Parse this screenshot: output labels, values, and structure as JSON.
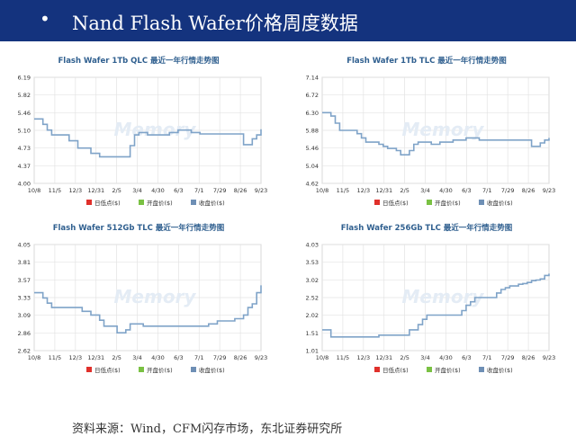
{
  "header": {
    "bullet": "•",
    "title": "Nand Flash Wafer价格周度数据"
  },
  "source": "资料来源：Wind，CFM闪存市场，东北证券研究所",
  "legend": {
    "low": "日低点($)",
    "open": "开盘价($)",
    "close": "收盘价($)"
  },
  "colors": {
    "header_bg": "#14337e",
    "line": "#7fa3c8",
    "title": "#2f5f8f",
    "low": "#e0302b",
    "open": "#7ac143",
    "close": "#6e8fb5"
  },
  "chart_data": [
    {
      "type": "line",
      "title": "Flash Wafer 1Tb QLC 最近一年行情走势图",
      "x_ticks": [
        "10/8",
        "11/5",
        "12/3",
        "12/31",
        "2/5",
        "3/4",
        "4/30",
        "6/3",
        "7/1",
        "7/29",
        "8/26",
        "9/23"
      ],
      "y_ticks": [
        "6.19",
        "5.82",
        "5.46",
        "5.10",
        "4.73",
        "4.37",
        "4.00"
      ],
      "ylim": [
        4.0,
        6.19
      ],
      "series": [
        {
          "values": [
            5.33,
            5.33,
            5.22,
            5.1,
            5.0,
            5.0,
            5.0,
            5.0,
            4.88,
            4.88,
            4.73,
            4.73,
            4.73,
            4.62,
            4.62,
            4.55,
            4.55,
            4.55,
            4.55,
            4.55,
            4.55,
            4.55,
            4.78,
            5.0,
            5.05,
            5.05,
            5.0,
            5.0,
            5.0,
            5.0,
            5.0,
            5.05,
            5.05,
            5.1,
            5.1,
            5.1,
            5.05,
            5.05,
            5.02,
            5.02,
            5.02,
            5.02,
            5.02,
            5.02,
            5.02,
            5.02,
            5.02,
            5.02,
            4.8,
            4.8,
            4.92,
            5.0,
            5.12
          ]
        }
      ]
    },
    {
      "type": "line",
      "title": "Flash Wafer 1Tb TLC 最近一年行情走势图",
      "x_ticks": [
        "10/8",
        "11/5",
        "12/3",
        "12/31",
        "2/5",
        "3/4",
        "4/30",
        "6/3",
        "7/1",
        "7/29",
        "8/26",
        "9/23"
      ],
      "y_ticks": [
        "7.14",
        "6.72",
        "6.30",
        "5.88",
        "5.46",
        "5.04",
        "4.62"
      ],
      "ylim": [
        4.62,
        7.14
      ],
      "series": [
        {
          "values": [
            6.3,
            6.3,
            6.22,
            6.05,
            5.88,
            5.88,
            5.88,
            5.88,
            5.8,
            5.7,
            5.6,
            5.6,
            5.6,
            5.55,
            5.5,
            5.45,
            5.45,
            5.4,
            5.3,
            5.3,
            5.4,
            5.55,
            5.6,
            5.6,
            5.6,
            5.55,
            5.55,
            5.6,
            5.6,
            5.6,
            5.65,
            5.65,
            5.65,
            5.7,
            5.7,
            5.7,
            5.65,
            5.65,
            5.65,
            5.65,
            5.65,
            5.65,
            5.65,
            5.65,
            5.65,
            5.65,
            5.65,
            5.65,
            5.5,
            5.5,
            5.58,
            5.65,
            5.7
          ]
        }
      ]
    },
    {
      "type": "line",
      "title": "Flash Wafer 512Gb TLC 最近一年行情走势图",
      "x_ticks": [
        "10/8",
        "11/5",
        "12/3",
        "12/31",
        "2/5",
        "3/4",
        "4/30",
        "6/3",
        "7/1",
        "7/29",
        "8/26",
        "9/23"
      ],
      "y_ticks": [
        "4.05",
        "3.81",
        "3.57",
        "3.33",
        "3.09",
        "2.86",
        "2.62"
      ],
      "ylim": [
        2.62,
        4.05
      ],
      "series": [
        {
          "values": [
            3.4,
            3.4,
            3.33,
            3.26,
            3.2,
            3.2,
            3.2,
            3.2,
            3.2,
            3.2,
            3.2,
            3.15,
            3.15,
            3.1,
            3.1,
            3.03,
            2.95,
            2.95,
            2.95,
            2.86,
            2.86,
            2.9,
            2.98,
            2.98,
            2.98,
            2.95,
            2.95,
            2.95,
            2.95,
            2.95,
            2.95,
            2.95,
            2.95,
            2.95,
            2.95,
            2.95,
            2.95,
            2.95,
            2.95,
            2.95,
            2.98,
            2.98,
            3.02,
            3.02,
            3.02,
            3.02,
            3.05,
            3.05,
            3.1,
            3.2,
            3.25,
            3.4,
            3.5
          ]
        }
      ]
    },
    {
      "type": "line",
      "title": "Flash Wafer 256Gb TLC 最近一年行情走势图",
      "x_ticks": [
        "10/8",
        "11/5",
        "12/3",
        "12/31",
        "2/5",
        "3/4",
        "4/30",
        "6/3",
        "7/1",
        "7/29",
        "8/26",
        "9/23"
      ],
      "y_ticks": [
        "4.03",
        "3.53",
        "3.02",
        "2.52",
        "2.02",
        "1.51",
        "1.01"
      ],
      "ylim": [
        1.01,
        4.03
      ],
      "series": [
        {
          "values": [
            1.6,
            1.6,
            1.4,
            1.4,
            1.4,
            1.4,
            1.4,
            1.4,
            1.4,
            1.4,
            1.4,
            1.4,
            1.4,
            1.45,
            1.45,
            1.45,
            1.45,
            1.45,
            1.45,
            1.45,
            1.6,
            1.6,
            1.75,
            1.9,
            2.02,
            2.02,
            2.02,
            2.02,
            2.02,
            2.02,
            2.02,
            2.02,
            2.15,
            2.3,
            2.4,
            2.52,
            2.52,
            2.52,
            2.52,
            2.52,
            2.65,
            2.75,
            2.8,
            2.85,
            2.85,
            2.9,
            2.92,
            2.95,
            3.0,
            3.02,
            3.05,
            3.15,
            3.2
          ]
        }
      ]
    }
  ]
}
